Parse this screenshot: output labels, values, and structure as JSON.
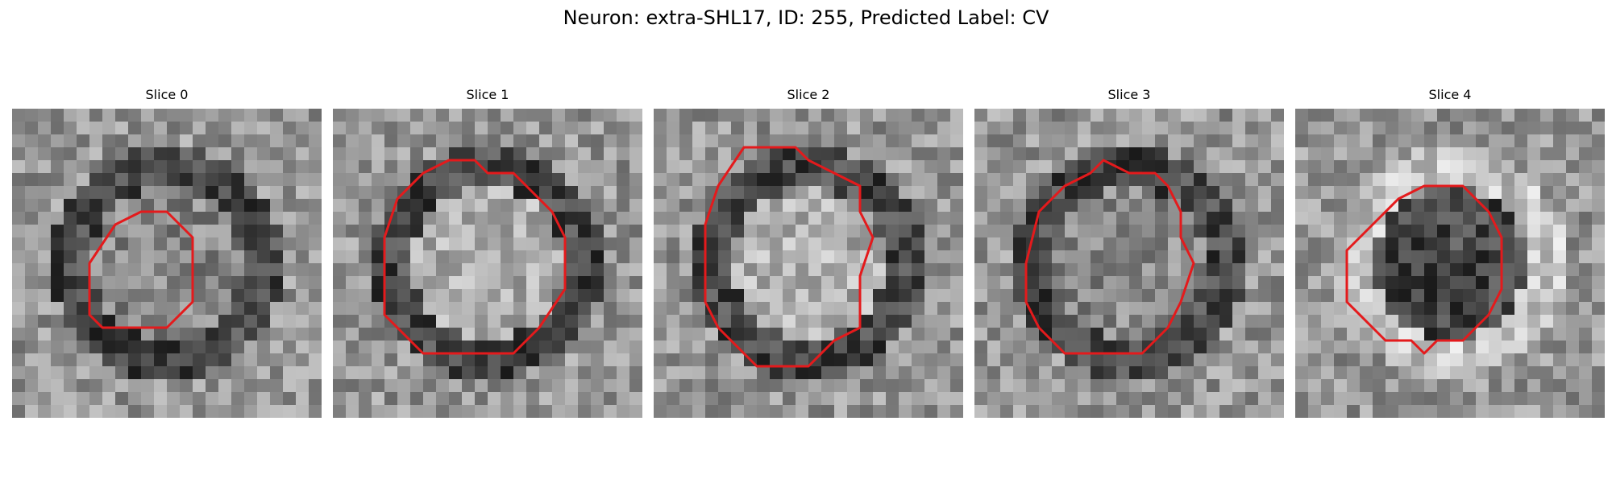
{
  "figure": {
    "title": "Neuron: extra-SHL17, ID: 255, Predicted Label: CV"
  },
  "panels": [
    {
      "title": "Slice 0",
      "image_description": "grayscale microscopy patch",
      "seed": 11,
      "blob_shade": "mid-gray",
      "ring_shade": "dark",
      "contour_polygon_cells": [
        [
          10,
          8
        ],
        [
          12,
          8
        ],
        [
          14,
          10
        ],
        [
          14,
          15
        ],
        [
          12,
          17
        ],
        [
          7,
          17
        ],
        [
          6,
          16
        ],
        [
          6,
          12
        ],
        [
          8,
          9
        ]
      ]
    },
    {
      "title": "Slice 1",
      "image_description": "grayscale microscopy patch",
      "seed": 23,
      "blob_shade": "light-gray",
      "ring_shade": "dark",
      "contour_polygon_cells": [
        [
          9,
          4
        ],
        [
          11,
          4
        ],
        [
          12,
          5
        ],
        [
          14,
          5
        ],
        [
          15,
          6
        ],
        [
          17,
          8
        ],
        [
          18,
          10
        ],
        [
          18,
          14
        ],
        [
          16,
          17
        ],
        [
          15,
          18
        ],
        [
          14,
          19
        ],
        [
          7,
          19
        ],
        [
          6,
          18
        ],
        [
          4,
          16
        ],
        [
          4,
          10
        ],
        [
          5,
          7
        ],
        [
          7,
          5
        ]
      ]
    },
    {
      "title": "Slice 2",
      "image_description": "grayscale microscopy patch",
      "seed": 37,
      "blob_shade": "light-gray",
      "ring_shade": "dark",
      "contour_polygon_cells": [
        [
          7,
          3
        ],
        [
          11,
          3
        ],
        [
          12,
          4
        ],
        [
          14,
          5
        ],
        [
          16,
          6
        ],
        [
          16,
          8
        ],
        [
          17,
          10
        ],
        [
          16,
          13
        ],
        [
          16,
          17
        ],
        [
          14,
          18
        ],
        [
          12,
          20
        ],
        [
          8,
          20
        ],
        [
          6,
          18
        ],
        [
          5,
          17
        ],
        [
          4,
          15
        ],
        [
          4,
          9
        ],
        [
          5,
          6
        ]
      ]
    },
    {
      "title": "Slice 3",
      "image_description": "grayscale microscopy patch",
      "seed": 41,
      "blob_shade": "mid-gray",
      "ring_shade": "dark",
      "contour_polygon_cells": [
        [
          10,
          4
        ],
        [
          12,
          5
        ],
        [
          14,
          5
        ],
        [
          15,
          6
        ],
        [
          16,
          8
        ],
        [
          16,
          10
        ],
        [
          17,
          12
        ],
        [
          16,
          15
        ],
        [
          15,
          17
        ],
        [
          13,
          19
        ],
        [
          7,
          19
        ],
        [
          5,
          17
        ],
        [
          4,
          15
        ],
        [
          4,
          12
        ],
        [
          5,
          8
        ],
        [
          7,
          6
        ],
        [
          9,
          5
        ]
      ]
    },
    {
      "title": "Slice 4",
      "image_description": "grayscale microscopy patch",
      "seed": 53,
      "blob_shade": "dark",
      "ring_shade": "light",
      "contour_polygon_cells": [
        [
          10,
          6
        ],
        [
          13,
          6
        ],
        [
          14,
          7
        ],
        [
          15,
          8
        ],
        [
          16,
          10
        ],
        [
          16,
          14
        ],
        [
          15,
          16
        ],
        [
          13,
          18
        ],
        [
          11,
          18
        ],
        [
          10,
          19
        ],
        [
          9,
          18
        ],
        [
          7,
          18
        ],
        [
          6,
          17
        ],
        [
          4,
          15
        ],
        [
          4,
          11
        ],
        [
          6,
          9
        ],
        [
          8,
          7
        ]
      ]
    }
  ]
}
